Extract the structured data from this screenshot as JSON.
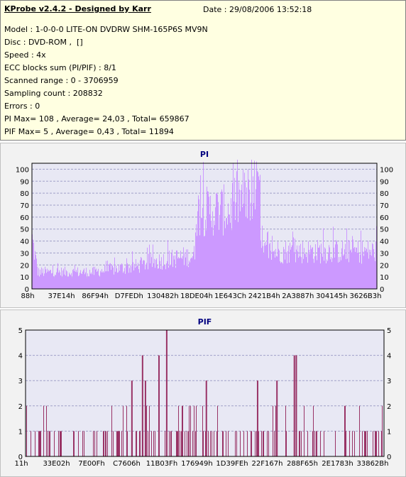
{
  "header": {
    "title": "KProbe v2.4.2 - Designed by Karr",
    "date": "Date : 29/08/2006 13:52:18"
  },
  "info_lines": [
    "Model : 1-0-0-0 LITE-ON DVDRW SHM-165P6S MV9N",
    "Disc : DVD-ROM ,  []",
    "Speed : 4x",
    "ECC blocks sum (PI/PIF) : 8/1",
    "Scanned range : 0 - 3706959",
    "Sampling count : 208832",
    "Errors : 0",
    "PI Max= 108 , Average= 24,03 , Total= 659867",
    "PIF Max= 5 , Average= 0,43 , Total= 11894"
  ],
  "colors": {
    "pi": "#cc99ff",
    "pif": "#993366",
    "plot_bg": "#e8e8f4",
    "grid": "#a0a0c8",
    "title": "#000080"
  },
  "chart_data": [
    {
      "type": "area",
      "title": "PI",
      "ylim": [
        0,
        105
      ],
      "yticks": [
        0,
        10,
        20,
        30,
        40,
        50,
        60,
        70,
        80,
        90,
        100
      ],
      "xlabels": [
        "88h",
        "37E14h",
        "86F94h",
        "D7FEDh",
        "130482h",
        "18DE04h",
        "1E643Ch",
        "2421B4h",
        "2A3887h",
        "304145h",
        "3626B3h"
      ],
      "xlim": [
        0,
        3706959
      ],
      "segments": [
        {
          "x": [
            0,
            60000
          ],
          "level": [
            50,
            18
          ]
        },
        {
          "x": [
            60000,
            700000
          ],
          "level": [
            17,
            17
          ]
        },
        {
          "x": [
            700000,
            1200000
          ],
          "level": [
            18,
            24
          ]
        },
        {
          "x": [
            1200000,
            1750000
          ],
          "level": [
            26,
            34
          ]
        },
        {
          "x": [
            1750000,
            2150000
          ],
          "level": [
            78,
            80
          ]
        },
        {
          "x": [
            2150000,
            2450000
          ],
          "level": [
            88,
            100
          ]
        },
        {
          "x": [
            2450000,
            3706959
          ],
          "level": [
            38,
            38
          ]
        }
      ],
      "max": 108,
      "average": 24.03
    },
    {
      "type": "bar",
      "title": "PIF",
      "ylim": [
        0,
        5
      ],
      "yticks": [
        0,
        1,
        2,
        3,
        4,
        5
      ],
      "xlabels": [
        "11h",
        "33E02h",
        "7E00Fh",
        "C7606h",
        "11B03Fh",
        "176949h",
        "1D39FEh",
        "22F167h",
        "288F65h",
        "2E1783h",
        "33862Bh"
      ],
      "xlim": [
        0,
        3706959
      ],
      "peaks": [
        {
          "x": 1460000,
          "value": 5
        },
        {
          "x": 1210000,
          "value": 4
        },
        {
          "x": 1380000,
          "value": 4
        },
        {
          "x": 2780000,
          "value": 4
        },
        {
          "x": 2800000,
          "value": 4
        },
        {
          "x": 1100000,
          "value": 3
        },
        {
          "x": 1240000,
          "value": 3
        },
        {
          "x": 1870000,
          "value": 3
        },
        {
          "x": 2400000,
          "value": 3
        },
        {
          "x": 2600000,
          "value": 3
        }
      ],
      "max": 5,
      "average": 0.43
    }
  ]
}
